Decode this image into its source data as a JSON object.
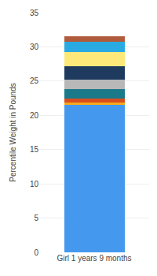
{
  "chart_data": {
    "type": "bar",
    "stacked": true,
    "categories": [
      "Girl 1 years 9 months"
    ],
    "series": [
      {
        "color": "#4499ee",
        "values": [
          21.5
        ]
      },
      {
        "color": "#f5a820",
        "values": [
          0.4
        ]
      },
      {
        "color": "#d94f1e",
        "values": [
          0.5
        ]
      },
      {
        "color": "#1a7a8a",
        "values": [
          1.4
        ]
      },
      {
        "color": "#b8b8b8",
        "values": [
          1.4
        ]
      },
      {
        "color": "#1e3a5f",
        "values": [
          2.0
        ]
      },
      {
        "color": "#fde97a",
        "values": [
          2.0
        ]
      },
      {
        "color": "#29aae2",
        "values": [
          1.5
        ]
      },
      {
        "color": "#b05c3c",
        "values": [
          0.8
        ]
      }
    ],
    "ylabel": "Percentile Weight in Pounds",
    "ylim": [
      0,
      35
    ],
    "yticks": [
      0,
      5,
      10,
      15,
      20,
      25,
      30,
      35
    ],
    "grid": true
  }
}
